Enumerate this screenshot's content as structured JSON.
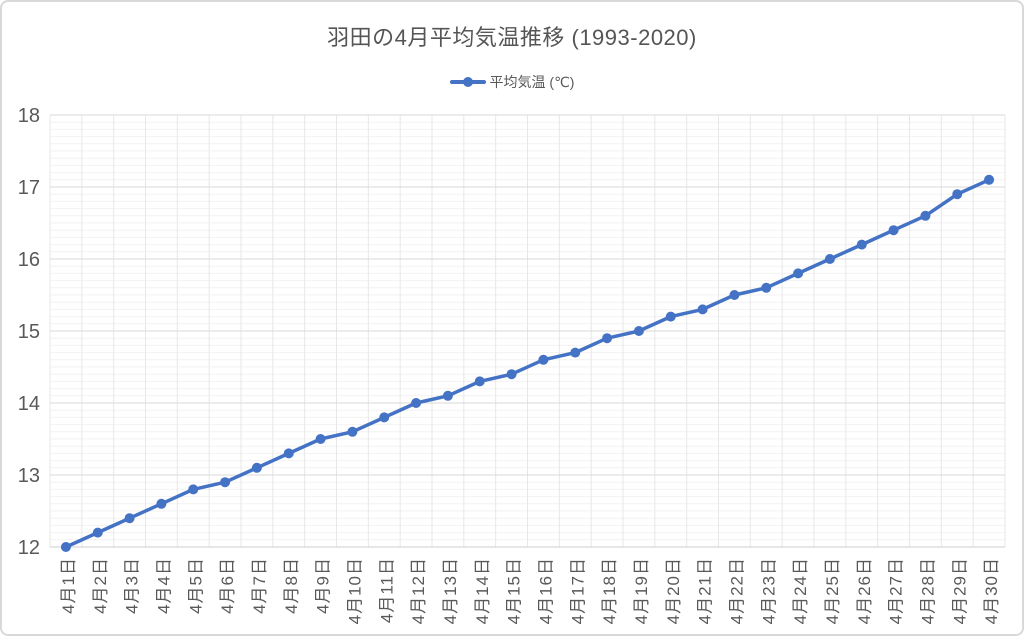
{
  "window": {
    "background_color": "#ffffff",
    "border_color": "#d9d9d9"
  },
  "chart_data": {
    "type": "line",
    "title": "羽田の4月平均気温推移 (1993-2020)",
    "legend": {
      "position": "top",
      "entries": [
        {
          "label": "平均気温 (℃)",
          "marker": "circle-on-line",
          "color": "#4472C4"
        }
      ]
    },
    "categories": [
      "4月1日",
      "4月2日",
      "4月3日",
      "4月4日",
      "4月5日",
      "4月6日",
      "4月7日",
      "4月8日",
      "4月9日",
      "4月10日",
      "4月11日",
      "4月12日",
      "4月13日",
      "4月14日",
      "4月15日",
      "4月16日",
      "4月17日",
      "4月18日",
      "4月19日",
      "4月20日",
      "4月21日",
      "4月22日",
      "4月23日",
      "4月24日",
      "4月25日",
      "4月26日",
      "4月27日",
      "4月28日",
      "4月29日",
      "4月30日"
    ],
    "series": [
      {
        "name": "平均気温 (℃)",
        "color": "#4472C4",
        "values": [
          12.0,
          12.2,
          12.4,
          12.6,
          12.8,
          12.9,
          13.1,
          13.3,
          13.5,
          13.6,
          13.8,
          14.0,
          14.1,
          14.3,
          14.4,
          14.6,
          14.7,
          14.9,
          15.0,
          15.2,
          15.3,
          15.5,
          15.6,
          15.8,
          16.0,
          16.2,
          16.4,
          16.6,
          16.9,
          17.1
        ]
      }
    ],
    "xlabel": "",
    "ylabel": "",
    "ylim": [
      12,
      18
    ],
    "y_major_step": 1,
    "y_minor_step": 0.1,
    "yticks": [
      12,
      13,
      14,
      15,
      16,
      17,
      18
    ],
    "x_tick_rotation": -90,
    "grid": {
      "major_horizontal_color": "#d9d9d9",
      "minor_horizontal_color": "#f2f2f2",
      "vertical_color": "#e7e7e7",
      "axis_line_color": "#cfcfcf"
    },
    "axis_label_color": "#595959",
    "title_color": "#555555"
  }
}
